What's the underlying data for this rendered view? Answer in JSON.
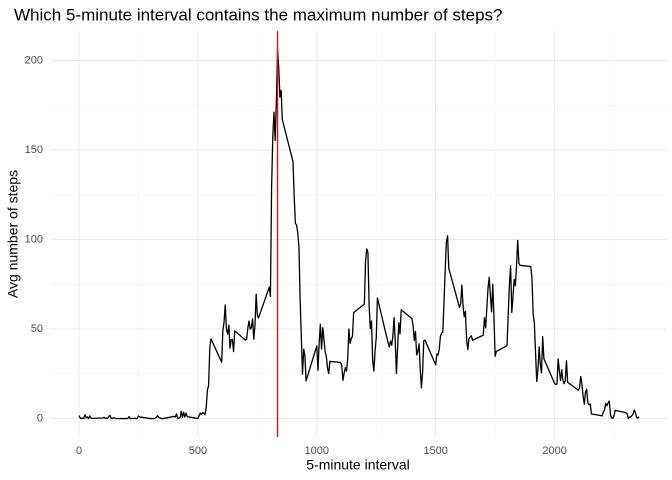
{
  "chart_data": {
    "type": "line",
    "title": "Which 5-minute interval contains the maximum number of steps?",
    "x_label": "5-minute interval",
    "y_label": "Avg number of steps",
    "color": "#000000",
    "x": [
      0,
      5,
      10,
      15,
      20,
      25,
      30,
      35,
      40,
      45,
      50,
      55,
      100,
      105,
      110,
      115,
      120,
      125,
      130,
      135,
      140,
      145,
      150,
      155,
      200,
      205,
      210,
      215,
      220,
      225,
      230,
      235,
      240,
      245,
      250,
      255,
      300,
      305,
      310,
      315,
      320,
      325,
      330,
      335,
      340,
      345,
      350,
      355,
      400,
      405,
      410,
      415,
      420,
      425,
      430,
      435,
      440,
      445,
      450,
      455,
      500,
      505,
      510,
      515,
      520,
      525,
      530,
      535,
      540,
      545,
      550,
      555,
      600,
      605,
      610,
      615,
      620,
      625,
      630,
      635,
      640,
      645,
      650,
      655,
      700,
      705,
      710,
      715,
      720,
      725,
      730,
      735,
      740,
      745,
      750,
      755,
      800,
      805,
      810,
      815,
      820,
      825,
      830,
      835,
      840,
      845,
      850,
      855,
      900,
      905,
      910,
      915,
      920,
      925,
      930,
      935,
      940,
      945,
      950,
      955,
      1000,
      1005,
      1010,
      1015,
      1020,
      1025,
      1030,
      1035,
      1040,
      1045,
      1050,
      1055,
      1100,
      1105,
      1110,
      1115,
      1120,
      1125,
      1130,
      1135,
      1140,
      1145,
      1150,
      1155,
      1200,
      1205,
      1210,
      1215,
      1220,
      1225,
      1230,
      1235,
      1240,
      1245,
      1250,
      1255,
      1300,
      1305,
      1310,
      1315,
      1320,
      1325,
      1330,
      1335,
      1340,
      1345,
      1350,
      1355,
      1400,
      1405,
      1410,
      1415,
      1420,
      1425,
      1430,
      1435,
      1440,
      1445,
      1450,
      1455,
      1500,
      1505,
      1510,
      1515,
      1520,
      1525,
      1530,
      1535,
      1540,
      1545,
      1550,
      1555,
      1600,
      1605,
      1610,
      1615,
      1620,
      1625,
      1630,
      1635,
      1640,
      1645,
      1650,
      1655,
      1700,
      1705,
      1710,
      1715,
      1720,
      1725,
      1730,
      1735,
      1740,
      1745,
      1750,
      1755,
      1800,
      1805,
      1810,
      1815,
      1820,
      1825,
      1830,
      1835,
      1840,
      1845,
      1850,
      1855,
      1900,
      1905,
      1910,
      1915,
      1920,
      1925,
      1930,
      1935,
      1940,
      1945,
      1950,
      1955,
      2000,
      2005,
      2010,
      2015,
      2020,
      2025,
      2030,
      2035,
      2040,
      2045,
      2050,
      2055,
      2100,
      2105,
      2110,
      2115,
      2120,
      2125,
      2130,
      2135,
      2140,
      2145,
      2150,
      2155,
      2200,
      2205,
      2210,
      2215,
      2220,
      2225,
      2230,
      2235,
      2240,
      2245,
      2250,
      2255,
      2300,
      2305,
      2310,
      2315,
      2320,
      2325,
      2330,
      2335,
      2340,
      2345,
      2350,
      2355
    ],
    "values": [
      1.7,
      0.3,
      0.1,
      0.2,
      0.1,
      2.1,
      0.5,
      0.9,
      0,
      1.5,
      0.3,
      0.1,
      0.3,
      0.7,
      0.2,
      0.3,
      0,
      1.1,
      1.8,
      0.2,
      0.2,
      0.4,
      0.3,
      0,
      0,
      0,
      1.1,
      0,
      0,
      0.1,
      0,
      0.2,
      0,
      0,
      1.5,
      0.9,
      0,
      0,
      0,
      0,
      0.2,
      0.6,
      1.6,
      0.6,
      0.5,
      0.1,
      0,
      0,
      1.2,
      0.9,
      2.6,
      0,
      0.3,
      0.4,
      4.1,
      0.7,
      3.5,
      0.8,
      3.1,
      1.1,
      0,
      1.6,
      3,
      2.2,
      3.3,
      3,
      2.1,
      6.1,
      16,
      18.3,
      39.5,
      44.5,
      31.5,
      49.3,
      53.8,
      63.5,
      50,
      47.1,
      52.2,
      39.3,
      44,
      44.2,
      37.4,
      49,
      43.8,
      44.4,
      50.5,
      54.5,
      49.9,
      50.9,
      55.7,
      44.3,
      52.3,
      69.5,
      57.8,
      56.2,
      73.4,
      68.2,
      129.4,
      157.5,
      171.2,
      155.4,
      177.3,
      206.2,
      195.9,
      179.6,
      183.4,
      167,
      143.5,
      124,
      109.1,
      108.1,
      103.7,
      96,
      66.2,
      45.2,
      24.8,
      38.8,
      35,
      21.1,
      40.6,
      27,
      42.4,
      52.7,
      38.9,
      50.8,
      44.3,
      37.4,
      34.7,
      28.3,
      25.1,
      31.9,
      31.4,
      29.7,
      21.3,
      25.5,
      28.4,
      26.5,
      33.4,
      50,
      42,
      44.6,
      46,
      59.2,
      63.9,
      87.7,
      94.8,
      92.8,
      63.4,
      50.2,
      54.5,
      32.4,
      26.5,
      37.7,
      45.1,
      67.3,
      42.3,
      39.9,
      43.3,
      41,
      46.2,
      56.4,
      42.8,
      25.1,
      40,
      53.5,
      47.3,
      60.8,
      55.8,
      52,
      43.6,
      48.7,
      35.5,
      37.5,
      41.8,
      27.5,
      17.1,
      26.1,
      43.6,
      43.8,
      30,
      36.1,
      35.5,
      38.8,
      46,
      47.8,
      48.1,
      65.3,
      82.9,
      98.7,
      102.1,
      84,
      62.1,
      64.1,
      74.5,
      63.2,
      56.9,
      59.8,
      43.9,
      38.6,
      44.7,
      45.5,
      46.2,
      43.7,
      46.6,
      56.3,
      50.7,
      61.2,
      72.7,
      78.9,
      68.9,
      59.7,
      75.1,
      56.5,
      34.8,
      37.5,
      40.7,
      58,
      74.7,
      85.3,
      59.3,
      67.8,
      77.7,
      74.2,
      85.3,
      99.5,
      86.6,
      85.6,
      84.9,
      77.8,
      58,
      53.4,
      36.3,
      20.7,
      27.4,
      40,
      30.2,
      25.5,
      45.7,
      33.5,
      19.6,
      19,
      19.3,
      33.3,
      26.8,
      21.2,
      27.3,
      21.3,
      19.5,
      21.3,
      32.3,
      20.2,
      15.9,
      17.2,
      23.5,
      19.2,
      12.5,
      8,
      14.7,
      16.3,
      8.7,
      7.8,
      8.1,
      2.6,
      1.5,
      3.7,
      4.8,
      8.5,
      7.1,
      8.7,
      9.8,
      2.2,
      0.3,
      0.1,
      1.6,
      4.6,
      3.3,
      2.8,
      0,
      0.8,
      1,
      1.6,
      2.6,
      4.7,
      3.3,
      0.6,
      0.2,
      1.1
    ],
    "xlim": [
      -117.75,
      2472.75
    ],
    "ylim": [
      -10.3,
      216.5
    ],
    "xticks": [
      0,
      500,
      1000,
      1500,
      2000
    ],
    "yticks": [
      0,
      50,
      100,
      150,
      200
    ],
    "xminorticks": [
      250,
      750,
      1250,
      1750,
      2250
    ],
    "yminorticks": [
      25,
      75,
      125,
      175
    ],
    "grid": true,
    "vline": {
      "value": 835,
      "color": "#ff0000"
    }
  }
}
